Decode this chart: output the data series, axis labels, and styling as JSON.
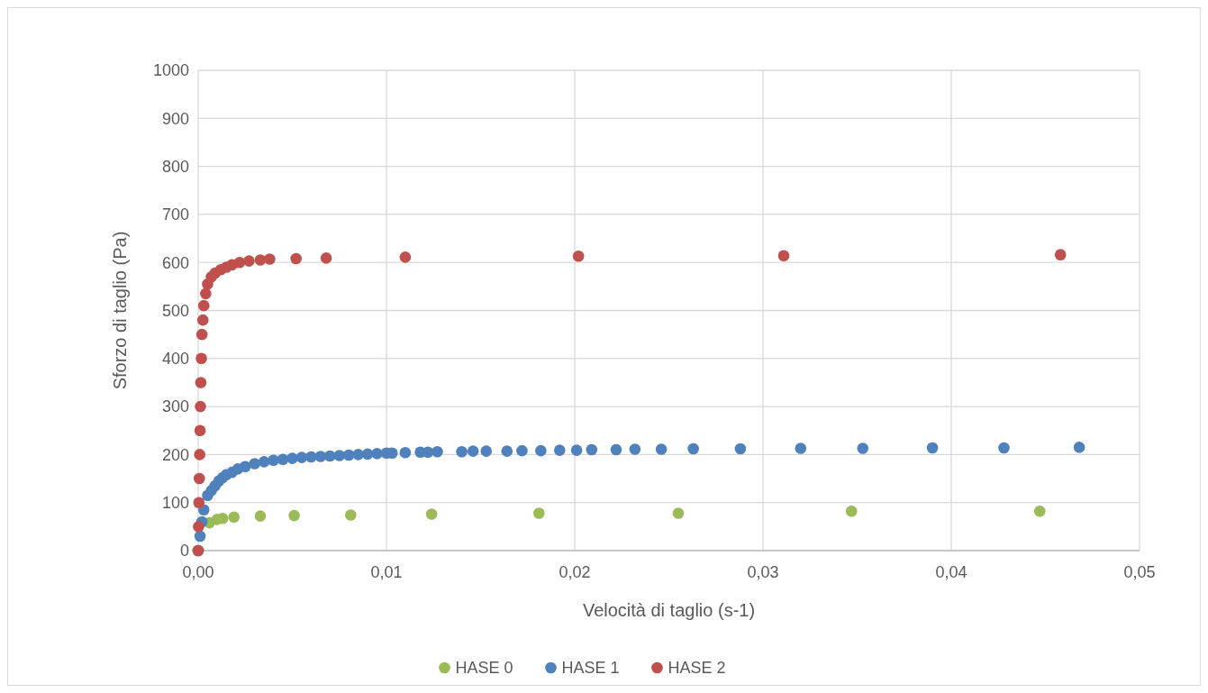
{
  "chart_data": {
    "type": "scatter",
    "xlabel": "Velocità di taglio (s-1)",
    "ylabel": "Sforzo di taglio (Pa)",
    "xlim": [
      0,
      0.05
    ],
    "xticks": [
      {
        "value": 0,
        "label": "0,00"
      },
      {
        "value": 0.01,
        "label": "0,01"
      },
      {
        "value": 0.02,
        "label": "0,02"
      },
      {
        "value": 0.03,
        "label": "0,03"
      },
      {
        "value": 0.04,
        "label": "0,04"
      },
      {
        "value": 0.05,
        "label": "0,05"
      }
    ],
    "ylim": [
      0,
      1000
    ],
    "yticks": [
      0,
      100,
      200,
      300,
      400,
      500,
      600,
      700,
      800,
      900,
      1000
    ],
    "grid": true,
    "legend": "bottom",
    "marker": "circle",
    "series": [
      {
        "name": "HASE 0",
        "color": "#9bbb59",
        "x": [
          0,
          0.0006,
          0.001,
          0.0013,
          0.0019,
          0.0033,
          0.0051,
          0.0081,
          0.0124,
          0.0181,
          0.0255,
          0.0347,
          0.0447
        ],
        "values": [
          0,
          58,
          65,
          67,
          70,
          72,
          73,
          74,
          76,
          78,
          78,
          82,
          82
        ]
      },
      {
        "name": "HASE 1",
        "color": "#4f81bd",
        "x": [
          0,
          0.0001,
          0.0002,
          0.0003,
          0.0005,
          0.0007,
          0.0009,
          0.0011,
          0.0013,
          0.0015,
          0.0018,
          0.0021,
          0.0025,
          0.003,
          0.0035,
          0.004,
          0.0045,
          0.005,
          0.0055,
          0.006,
          0.0065,
          0.007,
          0.0075,
          0.008,
          0.0085,
          0.009,
          0.0095,
          0.01,
          0.0103,
          0.011,
          0.0118,
          0.0122,
          0.0127,
          0.014,
          0.0146,
          0.0153,
          0.0164,
          0.0172,
          0.0182,
          0.0192,
          0.0201,
          0.0209,
          0.0222,
          0.0232,
          0.0246,
          0.0263,
          0.0288,
          0.032,
          0.0353,
          0.039,
          0.0428,
          0.0468
        ],
        "values": [
          0,
          30,
          60,
          85,
          115,
          125,
          135,
          145,
          152,
          158,
          163,
          170,
          175,
          181,
          185,
          188,
          190,
          192,
          194,
          195,
          196,
          197,
          198,
          199,
          200,
          201,
          202,
          203,
          203,
          204,
          205,
          205,
          206,
          206,
          207,
          207,
          207,
          208,
          208,
          209,
          209,
          210,
          210,
          211,
          211,
          212,
          212,
          213,
          213,
          214,
          214,
          215
        ]
      },
      {
        "name": "HASE 2",
        "color": "#c0504d",
        "x": [
          0,
          2e-05,
          4e-05,
          6e-05,
          8e-05,
          0.0001,
          0.00012,
          0.00014,
          0.00017,
          0.0002,
          0.00025,
          0.0003,
          0.0004,
          0.0005,
          0.0007,
          0.0009,
          0.0012,
          0.0015,
          0.0018,
          0.0022,
          0.0027,
          0.0033,
          0.0038,
          0.0052,
          0.0068,
          0.011,
          0.0202,
          0.0311,
          0.0458
        ],
        "values": [
          0,
          50,
          100,
          150,
          200,
          250,
          300,
          350,
          400,
          450,
          480,
          510,
          535,
          555,
          570,
          578,
          585,
          590,
          595,
          600,
          603,
          605,
          607,
          608,
          609,
          611,
          613,
          614,
          616
        ]
      }
    ]
  }
}
